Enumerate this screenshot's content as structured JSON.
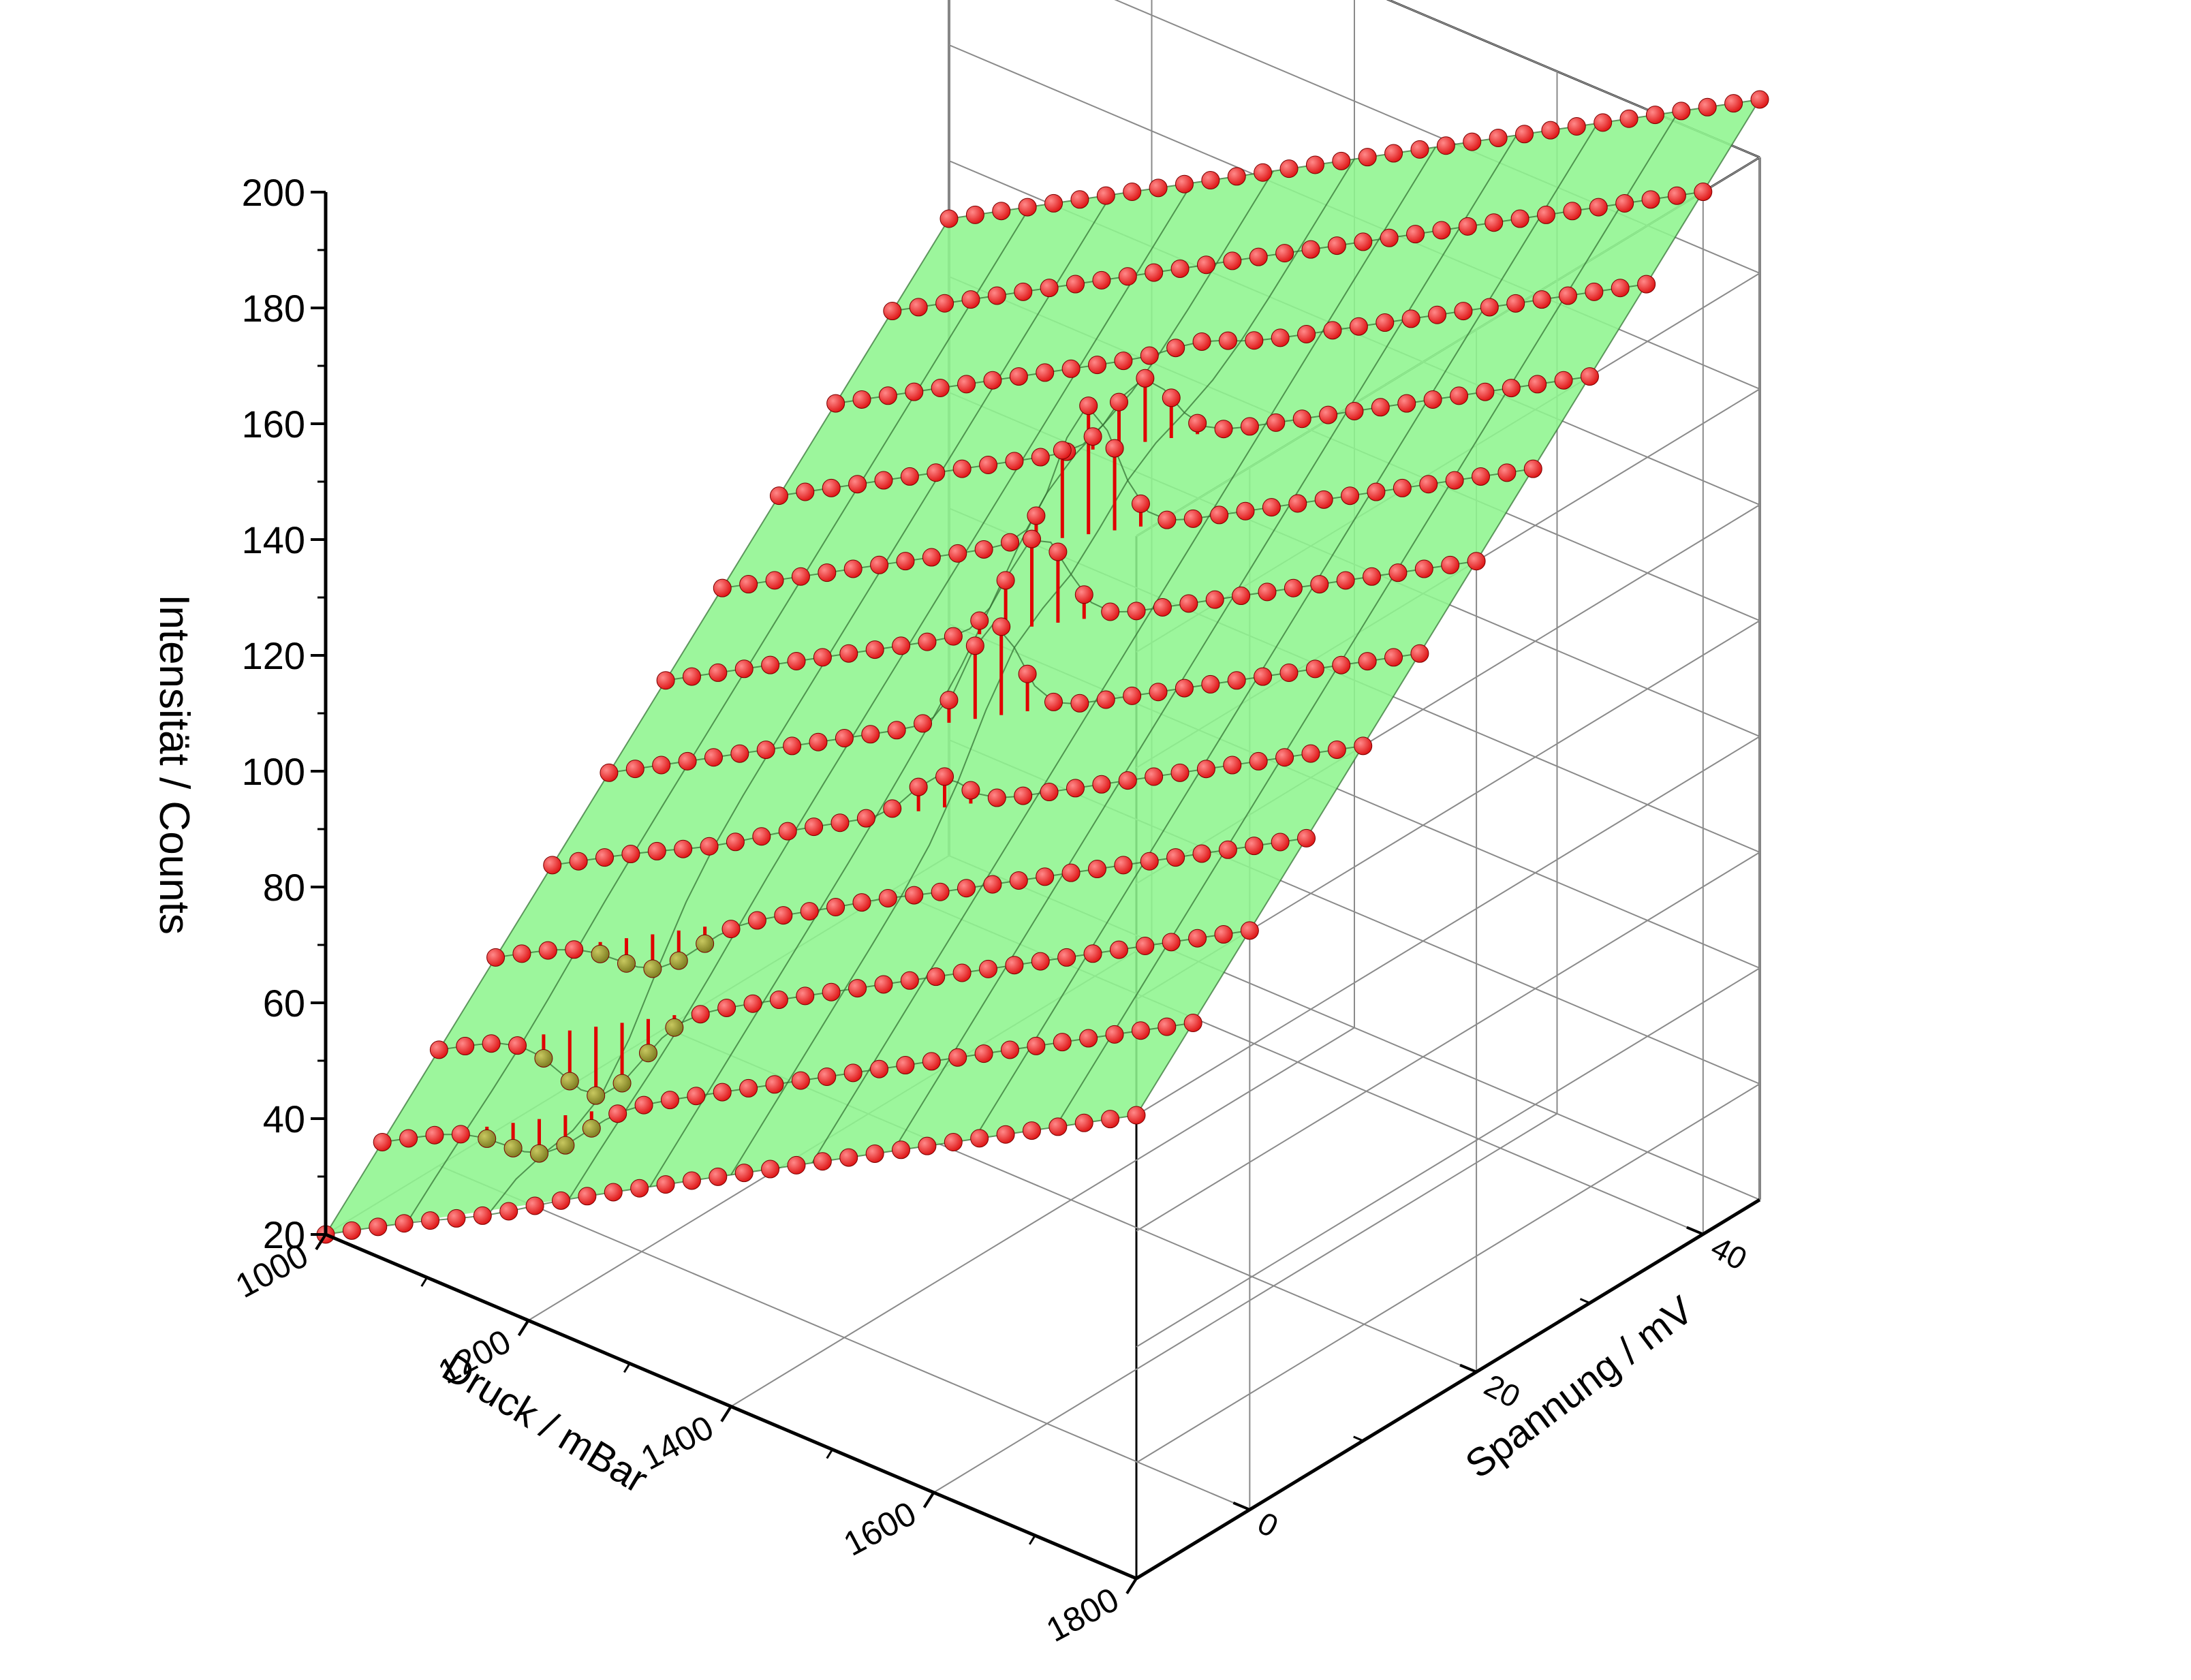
{
  "chart_data": {
    "type": "scatter",
    "subtype": "3d-surface-with-drop-lines",
    "title": "",
    "xlabel": "Druck / mBar",
    "ylabel": "Spannung / mV",
    "zlabel": "Intensität / Counts",
    "xlim": [
      1000,
      1800
    ],
    "ylim": [
      -10,
      45
    ],
    "zlim": [
      20,
      200
    ],
    "x_ticks": [
      "1000",
      "1200",
      "1400",
      "1600",
      "1800"
    ],
    "y_ticks": [
      "0",
      "20",
      "40"
    ],
    "z_ticks": [
      "20",
      "40",
      "60",
      "80",
      "100",
      "120",
      "140",
      "160",
      "180",
      "200"
    ],
    "grid": true,
    "legend": "none",
    "colors": {
      "surface": "#8ef58e",
      "surface_mesh": "#2f6b2f",
      "point": "#dd1111",
      "point_below_surface": "#7a7a1e",
      "drop_line": "#e00000"
    },
    "description": "Points lie on the plane z = 20 + 0.1*(x-1000) + 2*(y+10) with local bumps near x≈1150 (dips) and x≈1350 (peaks)",
    "x_count": 32,
    "y_values": [
      -10,
      -5,
      0,
      5,
      10,
      15,
      20,
      25,
      30,
      35,
      40,
      45
    ],
    "z_plane": {
      "intercept": 20,
      "x_slope": 0.1,
      "y_slope": 2.0,
      "x_origin": 1000,
      "y_origin": -10
    },
    "bumps": [
      {
        "x_center": 1160,
        "y_center": 0,
        "amplitude": -12,
        "x_spread": 55,
        "y_spread": 6
      },
      {
        "x_center": 1360,
        "y_center": 25,
        "amplitude": 22,
        "x_spread": 40,
        "y_spread": 6
      },
      {
        "x_center": 1380,
        "y_center": 15,
        "amplitude": 15,
        "x_spread": 35,
        "y_spread": 5
      }
    ]
  }
}
